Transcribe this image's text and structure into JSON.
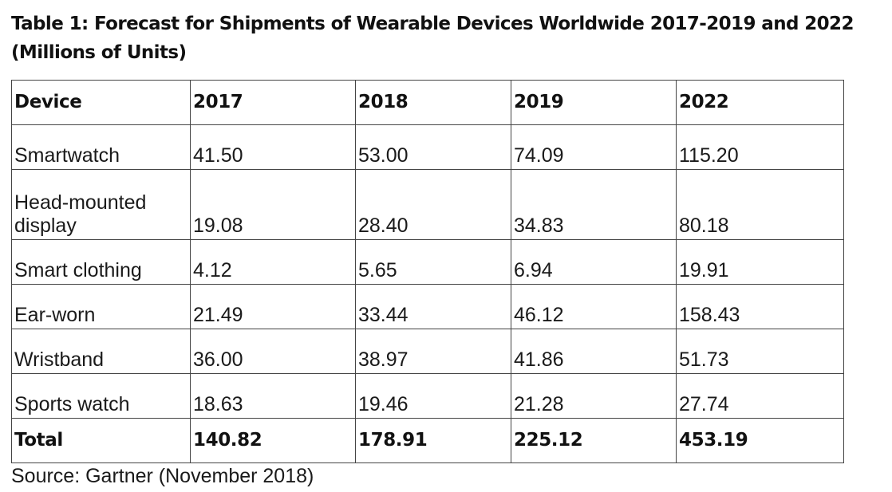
{
  "title": "Table 1: Forecast for Shipments of Wearable Devices Worldwide 2017-2019 and 2022 (Millions of Units)",
  "table": {
    "headers": [
      "Device",
      "2017",
      "2018",
      "2019",
      "2022"
    ],
    "rows": [
      [
        "Smartwatch",
        "41.50",
        "53.00",
        "74.09",
        "115.20"
      ],
      [
        "Head-mounted display",
        "19.08",
        "28.40",
        "34.83",
        "80.18"
      ],
      [
        "Smart clothing",
        "4.12",
        "5.65",
        "6.94",
        "19.91"
      ],
      [
        "Ear-worn",
        "21.49",
        "33.44",
        "46.12",
        "158.43"
      ],
      [
        "Wristband",
        "36.00",
        "38.97",
        "41.86",
        "51.73"
      ],
      [
        "Sports watch",
        "18.63",
        "19.46",
        "21.28",
        "27.74"
      ]
    ],
    "total": [
      "Total",
      "140.82",
      "178.91",
      "225.12",
      "453.19"
    ]
  },
  "source": "Source: Gartner (November 2018)"
}
